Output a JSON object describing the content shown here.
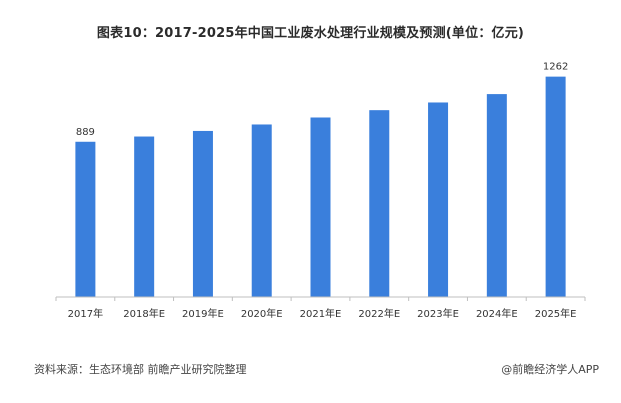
{
  "title": "图表10：2017-2025年中国工业废水处理行业规模及预测(单位：亿元)",
  "source": "资料来源：生态环境部 前瞻产业研究院整理",
  "brand": "@前瞻经济学人APP",
  "colors": {
    "bar": "#3a7fdc",
    "axis": "#bfbfbf"
  },
  "chart_data": {
    "type": "bar",
    "title": "图表10：2017-2025年中国工业废水处理行业规模及预测(单位：亿元)",
    "categories": [
      "2017年",
      "2018年E",
      "2019年E",
      "2020年E",
      "2021年E",
      "2022年E",
      "2023年E",
      "2024年E",
      "2025年E"
    ],
    "values": [
      889,
      919,
      951,
      988,
      1028,
      1070,
      1114,
      1162,
      1262
    ],
    "data_labels": [
      "889",
      "",
      "",
      "",
      "",
      "",
      "",
      "",
      "1262"
    ],
    "xlabel": "",
    "ylabel": "",
    "ylim": [
      0,
      1300
    ],
    "grid": false,
    "legend": "none"
  }
}
